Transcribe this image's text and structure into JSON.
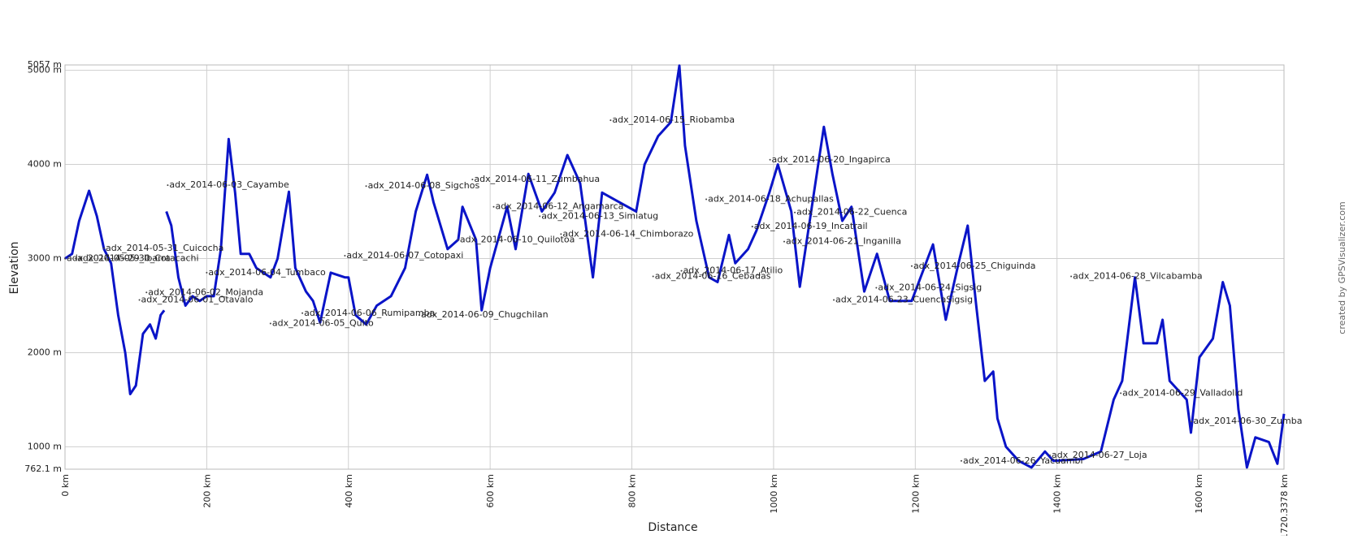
{
  "chart_data": {
    "type": "line",
    "xlabel": "Distance",
    "ylabel": "Elevation",
    "credit": "created by GPSVisualizer.com",
    "color": "#0a14c8",
    "grid": true,
    "xlim": [
      0,
      1720.3378
    ],
    "ylim": [
      762.1,
      5057
    ],
    "xticks": [
      {
        "value": 0,
        "label": "0 km"
      },
      {
        "value": 200,
        "label": "200 km"
      },
      {
        "value": 400,
        "label": "400 km"
      },
      {
        "value": 600,
        "label": "600 km"
      },
      {
        "value": 800,
        "label": "800 km"
      },
      {
        "value": 1000,
        "label": "1000 km"
      },
      {
        "value": 1200,
        "label": "1200 km"
      },
      {
        "value": 1400,
        "label": "1400 km"
      },
      {
        "value": 1600,
        "label": "1600 km"
      },
      {
        "value": 1720.3378,
        "label": "1720.3378 km"
      }
    ],
    "yticks": [
      {
        "value": 762.1,
        "label": "762.1 m"
      },
      {
        "value": 1000,
        "label": "1000 m"
      },
      {
        "value": 2000,
        "label": "2000 m"
      },
      {
        "value": 3000,
        "label": "3000 m"
      },
      {
        "value": 4000,
        "label": "4000 m"
      },
      {
        "value": 5000,
        "label": "5000 m"
      },
      {
        "value": 5057,
        "label": "5057 m"
      }
    ],
    "x": [
      0,
      10,
      20,
      34,
      45,
      55,
      65,
      75,
      85,
      92,
      100,
      110,
      120,
      128,
      135,
      140,
      141,
      143,
      150,
      160,
      170,
      180,
      190,
      200,
      210,
      220,
      231,
      240,
      248,
      260,
      270,
      290,
      300,
      316,
      325,
      340,
      350,
      360,
      375,
      395,
      400,
      410,
      425,
      440,
      460,
      480,
      495,
      511,
      520,
      540,
      555,
      561,
      580,
      588,
      600,
      624,
      636,
      654,
      673,
      691,
      709,
      727,
      745,
      758,
      782,
      806,
      818,
      837,
      855,
      867,
      875,
      891,
      909,
      921,
      937,
      946,
      964,
      976,
      994,
      1006,
      1025,
      1037,
      1055,
      1071,
      1083,
      1097,
      1110,
      1128,
      1146,
      1164,
      1195,
      1225,
      1243,
      1261,
      1274,
      1286,
      1298,
      1310,
      1316,
      1328,
      1346,
      1364,
      1383,
      1395,
      1437,
      1462,
      1480,
      1492,
      1510,
      1522,
      1541,
      1549,
      1559,
      1583,
      1589,
      1601,
      1620,
      1634,
      1644,
      1656,
      1668,
      1680,
      1699,
      1711,
      1720.3378
    ],
    "values": [
      3000,
      3050,
      3400,
      3720,
      3450,
      3100,
      2950,
      2400,
      2000,
      1560,
      1650,
      2200,
      2300,
      2150,
      2400,
      2450,
      null,
      3500,
      3350,
      2800,
      2500,
      2600,
      2550,
      2600,
      2600,
      3100,
      4270,
      3700,
      3050,
      3050,
      2900,
      2800,
      3000,
      3710,
      2900,
      2650,
      2550,
      2320,
      2850,
      2800,
      2800,
      2400,
      2300,
      2500,
      2600,
      2900,
      3500,
      3890,
      3600,
      3100,
      3200,
      3550,
      3200,
      2450,
      2900,
      3550,
      3100,
      3900,
      3500,
      3700,
      4100,
      3800,
      2800,
      3700,
      3600,
      3500,
      4000,
      4300,
      4450,
      5050,
      4200,
      3400,
      2800,
      2750,
      3250,
      2950,
      3100,
      3300,
      3700,
      4000,
      3500,
      2700,
      3600,
      4400,
      3900,
      3400,
      3550,
      2650,
      3050,
      2550,
      2550,
      3150,
      2350,
      2950,
      3350,
      2500,
      1700,
      1800,
      1300,
      1000,
      850,
      780,
      950,
      850,
      870,
      950,
      1500,
      1700,
      2800,
      2100,
      2100,
      2350,
      1700,
      1500,
      1150,
      1950,
      2150,
      2750,
      2500,
      1400,
      780,
      1100,
      1050,
      820,
      1350
    ],
    "waypoints": [
      {
        "label": "adx_2014-05-29_Ibarra",
        "x": 0,
        "y": 3000
      },
      {
        "label": "adx_2014-05-30_Cotacachi",
        "x": 15,
        "y": 3000
      },
      {
        "label": "adx_2014-05-31_Cuicocha",
        "x": 55,
        "y": 3110
      },
      {
        "label": "adx_2014-06-01_Otavalo",
        "x": 105,
        "y": 2560
      },
      {
        "label": "adx_2014-06-02_Mojanda",
        "x": 115,
        "y": 2640
      },
      {
        "label": "adx_2014-06-03_Cayambe",
        "x": 145,
        "y": 3780
      },
      {
        "label": "adx_2014-06-04_Tumbaco",
        "x": 200,
        "y": 2850
      },
      {
        "label": "adx_2014-06-05_Quito",
        "x": 290,
        "y": 2310
      },
      {
        "label": "adx_2014-06-06_Rumipamba",
        "x": 335,
        "y": 2420
      },
      {
        "label": "adx_2014-06-07_Cotopaxi",
        "x": 395,
        "y": 3030
      },
      {
        "label": "adx_2014-06-08_Sigchos",
        "x": 425,
        "y": 3770
      },
      {
        "label": "adx_2014-06-09_Chugchilan",
        "x": 500,
        "y": 2400
      },
      {
        "label": "adx_2014-06-10_Quilotoa",
        "x": 555,
        "y": 3200
      },
      {
        "label": "adx_2014-06-11_Zumbahua",
        "x": 575,
        "y": 3840
      },
      {
        "label": "adx_2014-06-12_Angamarca",
        "x": 605,
        "y": 3550
      },
      {
        "label": "adx_2014-06-13_Simiatug",
        "x": 670,
        "y": 3450
      },
      {
        "label": "adx_2014-06-14_Chimborazo",
        "x": 700,
        "y": 3260
      },
      {
        "label": "adx_2014-06-15_Riobamba",
        "x": 770,
        "y": 4470
      },
      {
        "label": "adx_2014-06-16_Cebadas",
        "x": 830,
        "y": 2810
      },
      {
        "label": "adx_2014-06-17_Atilio",
        "x": 870,
        "y": 2870
      },
      {
        "label": "adx_2014-06-18_Achupallas",
        "x": 905,
        "y": 3630
      },
      {
        "label": "adx_2014-06-19_Incatrail",
        "x": 970,
        "y": 3340
      },
      {
        "label": "adx_2014-06-20_Ingapirca",
        "x": 995,
        "y": 4050
      },
      {
        "label": "adx_2014-06-21_Inganilla",
        "x": 1015,
        "y": 3180
      },
      {
        "label": "adx_2014-06-22_Cuenca",
        "x": 1030,
        "y": 3490
      },
      {
        "label": "adx_2014-06-23_CuencaSigsig",
        "x": 1085,
        "y": 2560
      },
      {
        "label": "adx_2014-06-24_Sigsig",
        "x": 1145,
        "y": 2690
      },
      {
        "label": "adx_2014-06-25_Chiguinda",
        "x": 1195,
        "y": 2920
      },
      {
        "label": "adx_2014-06-26_Yacuambi",
        "x": 1265,
        "y": 850
      },
      {
        "label": "adx_2014-06-27_Loja",
        "x": 1390,
        "y": 910
      },
      {
        "label": "adx_2014-06-28_Vilcabamba",
        "x": 1420,
        "y": 2810
      },
      {
        "label": "adx_2014-06-29_Valladolid",
        "x": 1490,
        "y": 1570
      },
      {
        "label": "adx_2014-06-30_Zumba",
        "x": 1590,
        "y": 1270
      }
    ]
  }
}
